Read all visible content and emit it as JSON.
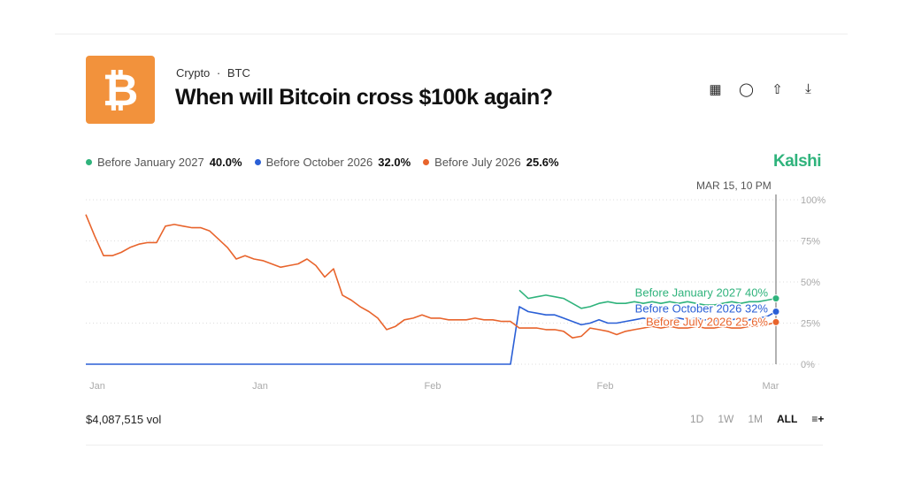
{
  "header": {
    "category": "Crypto",
    "separator": "·",
    "ticker": "BTC",
    "title": "When will Bitcoin cross $100k again?",
    "logo_glyph": "₿",
    "logo_color": "#f2923c"
  },
  "toolbar_icons": [
    "calendar-icon",
    "comment-icon",
    "share-icon",
    "download-icon"
  ],
  "brand": "Kalshi",
  "legend": [
    {
      "label": "Before January 2027",
      "value": "40.0%",
      "color": "#2fb37c"
    },
    {
      "label": "Before October 2026",
      "value": "32.0%",
      "color": "#2a5fd6"
    },
    {
      "label": "Before July 2026",
      "value": "25.6%",
      "color": "#e8642c"
    }
  ],
  "timestamp": "MAR 15, 10 PM",
  "volume": "$4,087,515 vol",
  "ranges": [
    "1D",
    "1W",
    "1M",
    "ALL"
  ],
  "active_range": "ALL",
  "chart_data": {
    "type": "line",
    "ylim": [
      0,
      100
    ],
    "y_ticks": [
      "100%",
      "75%",
      "50%",
      "25%",
      "0%"
    ],
    "x_ticks": [
      "Jan",
      "Jan",
      "Feb",
      "Feb",
      "Mar"
    ],
    "grid": true,
    "series": [
      {
        "name": "Before January 2027",
        "color": "#2fb37c",
        "end_label": "Before January 2027 40%",
        "values": [
          null,
          null,
          null,
          null,
          null,
          null,
          null,
          null,
          null,
          null,
          null,
          null,
          null,
          null,
          null,
          null,
          null,
          null,
          null,
          null,
          null,
          null,
          null,
          null,
          null,
          null,
          null,
          null,
          null,
          null,
          null,
          null,
          null,
          null,
          null,
          null,
          null,
          null,
          null,
          null,
          null,
          null,
          null,
          null,
          null,
          null,
          null,
          null,
          null,
          45,
          40,
          41,
          42,
          41,
          40,
          37,
          34,
          35,
          37,
          38,
          37,
          37,
          38,
          37,
          38,
          37,
          38,
          37,
          38,
          37,
          36,
          36,
          37,
          38,
          37,
          38,
          38,
          39,
          40
        ]
      },
      {
        "name": "Before October 2026",
        "color": "#2a5fd6",
        "end_label": "Before October 2026 32%",
        "values": [
          0,
          0,
          0,
          0,
          0,
          0,
          0,
          0,
          0,
          0,
          0,
          0,
          0,
          0,
          0,
          0,
          0,
          0,
          0,
          0,
          0,
          0,
          0,
          0,
          0,
          0,
          0,
          0,
          0,
          0,
          0,
          0,
          0,
          0,
          0,
          0,
          0,
          0,
          0,
          0,
          0,
          0,
          0,
          0,
          0,
          0,
          0,
          0,
          0,
          35,
          32,
          31,
          30,
          30,
          28,
          26,
          24,
          25,
          27,
          25,
          25,
          26,
          27,
          28,
          27,
          28,
          27,
          28,
          27,
          28,
          27,
          26,
          28,
          27,
          28,
          27,
          28,
          29,
          32
        ]
      },
      {
        "name": "Before July 2026",
        "color": "#e8642c",
        "end_label": "Before July 2026 25.6%",
        "values": [
          91,
          78,
          66,
          66,
          68,
          71,
          73,
          74,
          74,
          84,
          85,
          84,
          83,
          83,
          81,
          76,
          71,
          64,
          66,
          64,
          63,
          61,
          59,
          60,
          61,
          64,
          60,
          53,
          58,
          42,
          39,
          35,
          32,
          28,
          21,
          23,
          27,
          28,
          30,
          28,
          28,
          27,
          27,
          27,
          28,
          27,
          27,
          26,
          26,
          22,
          22,
          22,
          21,
          21,
          20,
          16,
          17,
          22,
          21,
          20,
          18,
          20,
          21,
          22,
          23,
          22,
          23,
          22,
          22,
          23,
          22,
          22,
          23,
          22,
          22,
          23,
          23,
          24,
          25.6
        ]
      }
    ]
  }
}
